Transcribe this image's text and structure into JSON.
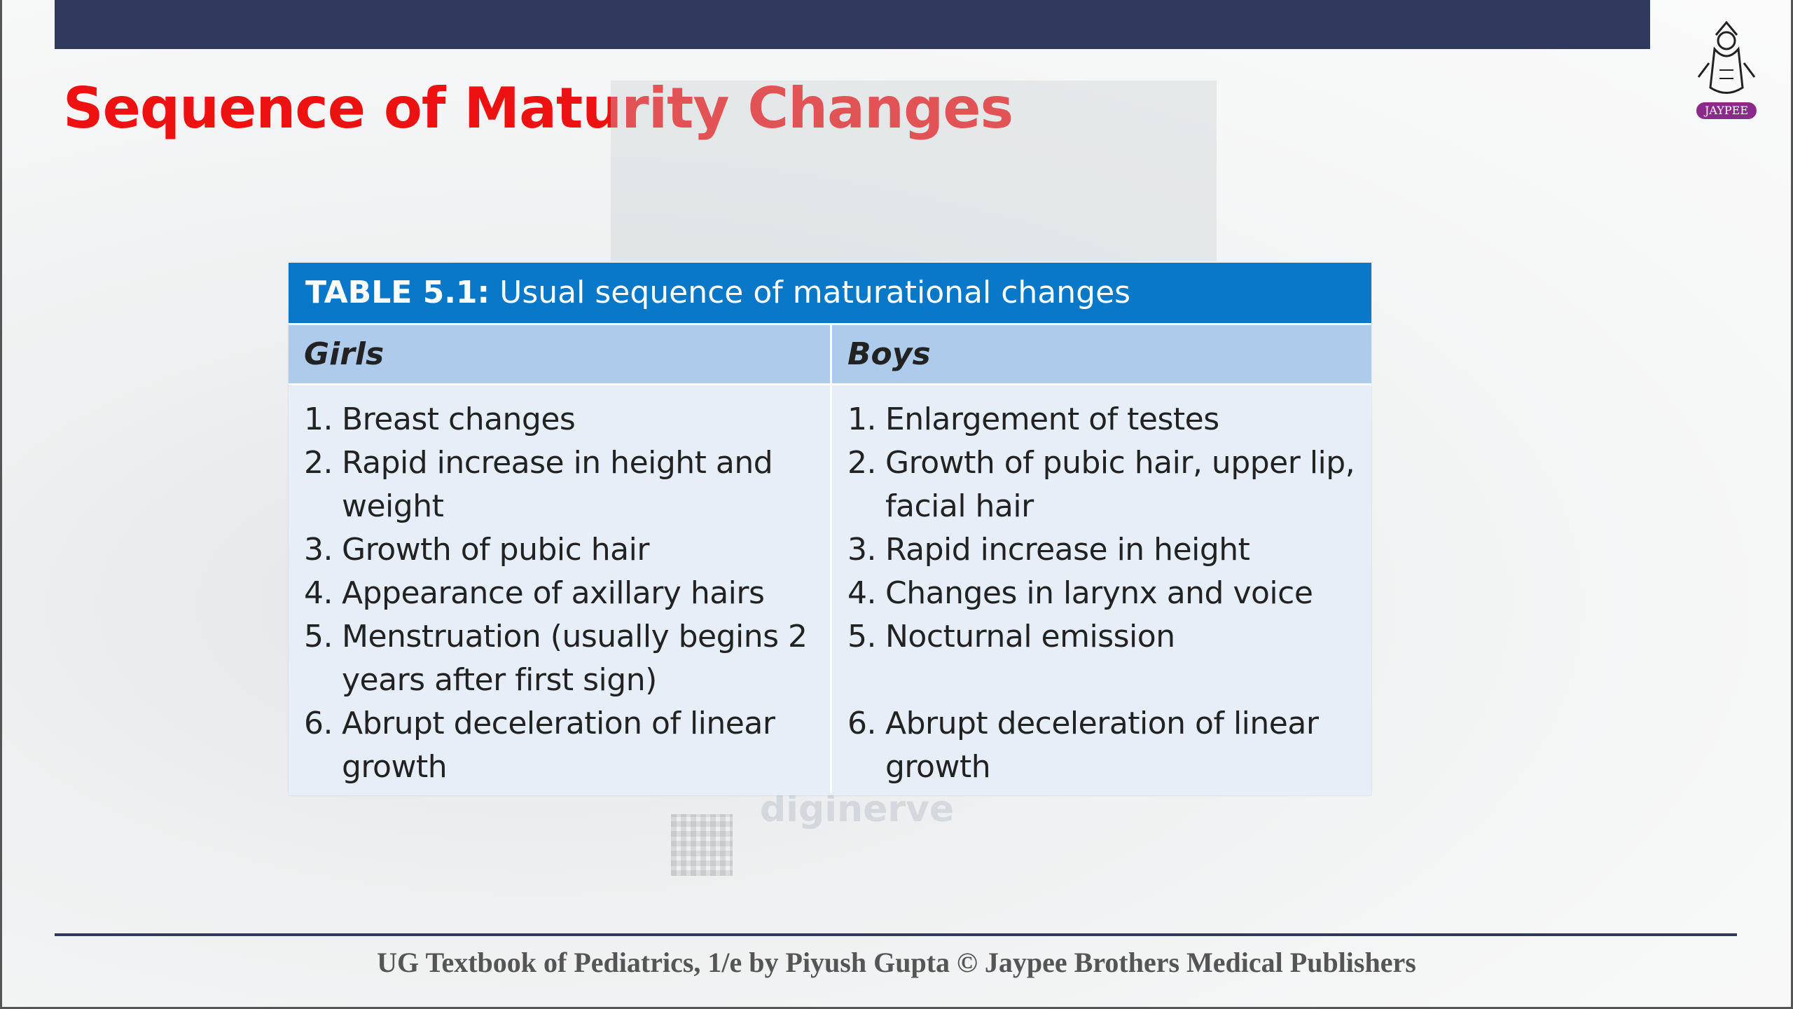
{
  "slide": {
    "title": "Sequence of Maturity Changes",
    "logo_text": "JAYPEE",
    "watermark_text": "diginerve"
  },
  "table": {
    "caption_label": "TABLE 5.1:",
    "caption_text": "Usual sequence of maturational changes",
    "girls_header": "Girls",
    "boys_header": "Boys",
    "girls": [
      {
        "num": "1.",
        "text": "Breast changes"
      },
      {
        "num": "2.",
        "text": "Rapid increase in height and weight"
      },
      {
        "num": "3.",
        "text": "Growth of pubic hair"
      },
      {
        "num": "4.",
        "text": "Appearance of axillary hairs"
      },
      {
        "num": "5.",
        "text": "Menstruation (usually begins 2 years after first sign)"
      },
      {
        "num": "6.",
        "text": "Abrupt deceleration of linear growth"
      }
    ],
    "boys": [
      {
        "num": "1.",
        "text": "Enlargement of testes"
      },
      {
        "num": "2.",
        "text": "Growth of pubic hair, upper lip, facial hair"
      },
      {
        "num": "3.",
        "text": "Rapid increase in height"
      },
      {
        "num": "4.",
        "text": "Changes in larynx and voice"
      },
      {
        "num": "5.",
        "text": "Nocturnal emission"
      },
      {
        "num": "6.",
        "text": "Abrupt deceleration of linear growth"
      }
    ]
  },
  "footer": {
    "text": "UG Textbook of Pediatrics, 1/e by Piyush Gupta © Jaypee Brothers Medical Publishers"
  },
  "colors": {
    "title": "#ee1111",
    "top_bar": "#2f3a5e",
    "caption_bg": "#0a78c8",
    "header_bg": "#aecbec",
    "body_bg": "#e6eef8"
  }
}
